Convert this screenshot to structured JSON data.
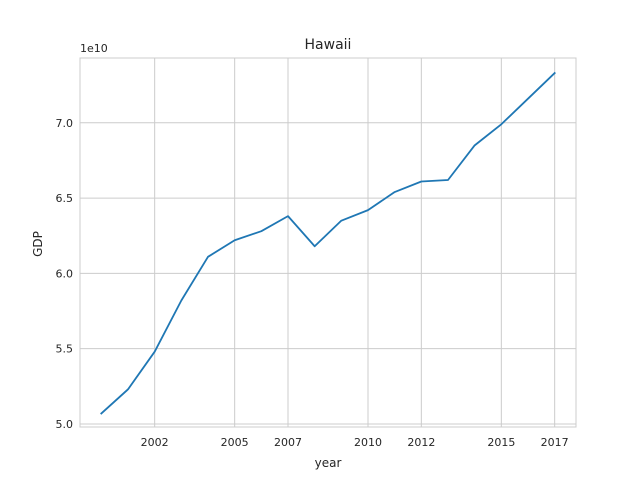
{
  "chart_data": {
    "type": "line",
    "title": "Hawaii",
    "xlabel": "year",
    "ylabel": "GDP",
    "y_multiplier_label": "1e10",
    "x": [
      2000,
      2001,
      2002,
      2003,
      2004,
      2005,
      2006,
      2007,
      2008,
      2009,
      2010,
      2011,
      2012,
      2013,
      2014,
      2015,
      2016,
      2017
    ],
    "series": [
      {
        "values": [
          5.07,
          5.23,
          5.48,
          5.82,
          6.11,
          6.22,
          6.28,
          6.38,
          6.18,
          6.35,
          6.42,
          6.54,
          6.61,
          6.62,
          6.85,
          6.99,
          7.16,
          7.33
        ],
        "color": "#1f77b4"
      }
    ],
    "xlim": [
      1999.2,
      2017.8
    ],
    "ylim": [
      4.98,
      7.43
    ],
    "x_ticks": [
      2002,
      2005,
      2007,
      2010,
      2012,
      2015,
      2017
    ],
    "y_ticks": [
      5.0,
      5.5,
      6.0,
      6.5,
      7.0
    ],
    "y_tick_labels": [
      "5.0",
      "5.5",
      "6.0",
      "6.5",
      "7.0"
    ],
    "grid": true,
    "style": "whitegrid"
  }
}
